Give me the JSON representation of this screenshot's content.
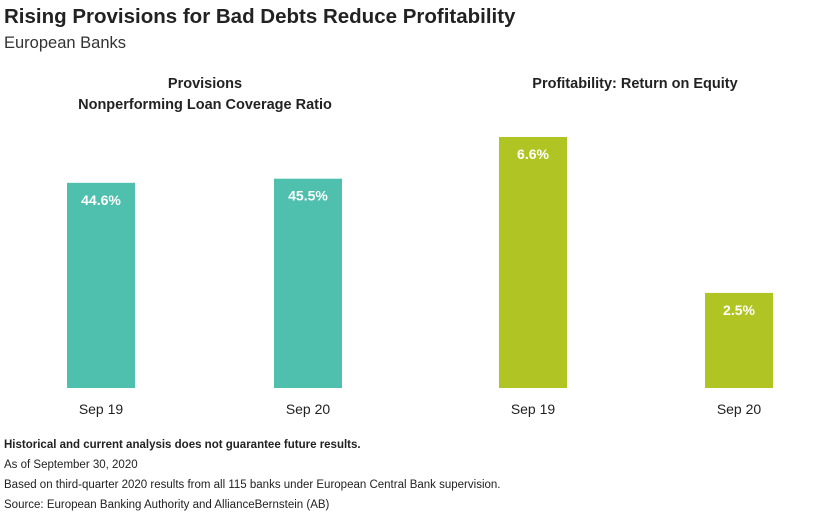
{
  "header": {
    "title": "Rising Provisions for Bad Debts Reduce Profitability",
    "subtitle": "European Banks"
  },
  "colors": {
    "provisions": "#4fbfae",
    "profitability": "#b0c523",
    "bar_label": "#ffffff",
    "text": "#222222"
  },
  "chart_data": [
    {
      "type": "bar",
      "title": "Provisions\nNonperforming Loan Coverage Ratio",
      "categories": [
        "Sep 19",
        "Sep 20"
      ],
      "values": [
        44.6,
        45.5
      ],
      "data_labels": [
        "44.6%",
        "45.5%"
      ],
      "unit": "%",
      "ylim": [
        0,
        50
      ],
      "grid": false,
      "legend": "none"
    },
    {
      "type": "bar",
      "title": "Profitability: Return on Equity",
      "categories": [
        "Sep 19",
        "Sep 20"
      ],
      "values": [
        6.6,
        2.5
      ],
      "data_labels": [
        "6.6%",
        "2.5%"
      ],
      "unit": "%",
      "ylim": [
        0,
        6.6
      ],
      "grid": false,
      "legend": "none"
    }
  ],
  "footer": {
    "disclaimer": "Historical and current analysis does not guarantee future results.",
    "as_of": "As of September 30, 2020",
    "basis": "Based on third-quarter 2020 results from all 115 banks under European Central Bank supervision.",
    "source": "Source: European Banking Authority and AllianceBernstein (AB)"
  }
}
